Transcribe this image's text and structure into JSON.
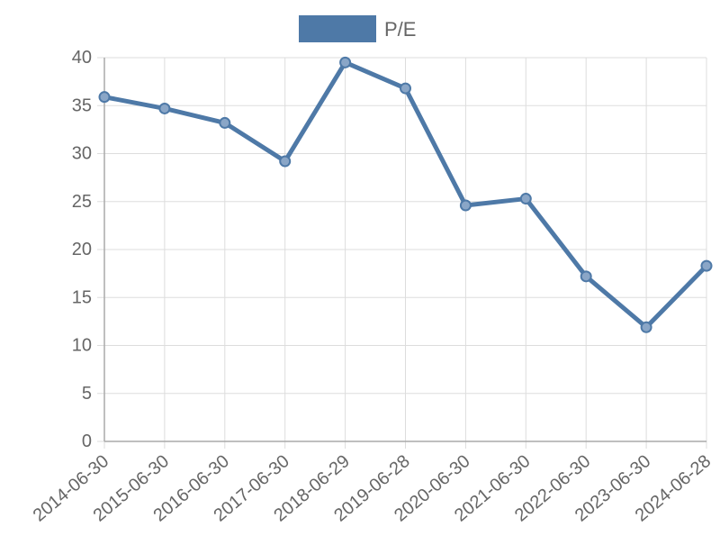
{
  "chart_data": {
    "type": "line",
    "title": "",
    "xlabel": "",
    "ylabel": "",
    "legend": {
      "placement": "top",
      "entries": [
        "P/E"
      ]
    },
    "categories": [
      "2014-06-30",
      "2015-06-30",
      "2016-06-30",
      "2017-06-30",
      "2018-06-29",
      "2019-06-28",
      "2020-06-30",
      "2021-06-30",
      "2022-06-30",
      "2023-06-30",
      "2024-06-28"
    ],
    "series": [
      {
        "name": "P/E",
        "color": "#4e79a7",
        "values": [
          35.9,
          34.7,
          33.2,
          29.2,
          39.5,
          36.8,
          24.6,
          25.3,
          17.2,
          11.9,
          18.3
        ]
      }
    ],
    "ylim": [
      0,
      40
    ],
    "yticks": [
      "0",
      "5",
      "10",
      "15",
      "20",
      "25",
      "30",
      "35",
      "40"
    ],
    "grid": true
  }
}
